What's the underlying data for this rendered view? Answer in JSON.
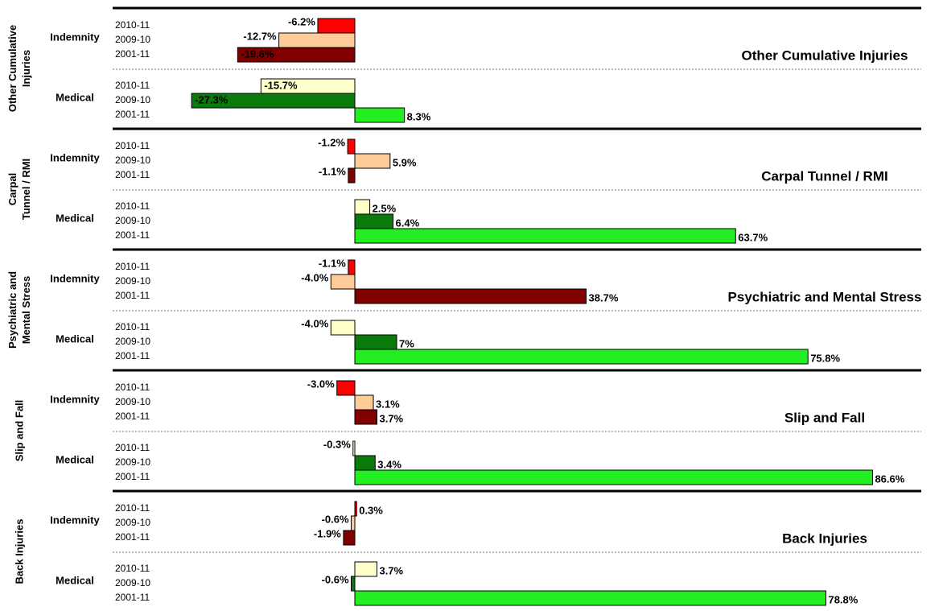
{
  "chart_data": {
    "type": "bar",
    "groups": [
      {
        "label_lines": [
          "Other Cumulative",
          "Injuries"
        ],
        "title": "Other Cumulative Injuries",
        "subgroups": [
          {
            "name": "Indemnity",
            "categories": [
              "2010-11",
              "2009-10",
              "2001-11"
            ],
            "values": [
              -6.2,
              -12.7,
              -19.6
            ],
            "value_labels": [
              "-6.2%",
              "-12.7%",
              "-19.6%"
            ],
            "colors": [
              "#ff0000",
              "#ffcc99",
              "#800000"
            ]
          },
          {
            "name": "Medical",
            "categories": [
              "2010-11",
              "2009-10",
              "2001-11"
            ],
            "values": [
              -15.7,
              -27.3,
              8.3
            ],
            "value_labels": [
              "-15.7%",
              "-27.3%",
              "8.3%"
            ],
            "colors": [
              "#ffffcc",
              "#0a7a0a",
              "#22ee22"
            ]
          }
        ]
      },
      {
        "label_lines": [
          "Carpal",
          "Tunnel / RMI"
        ],
        "title": "Carpal Tunnel / RMI",
        "subgroups": [
          {
            "name": "Indemnity",
            "categories": [
              "2010-11",
              "2009-10",
              "2001-11"
            ],
            "values": [
              -1.2,
              5.9,
              -1.1
            ],
            "value_labels": [
              "-1.2%",
              "5.9%",
              "-1.1%"
            ],
            "colors": [
              "#ff0000",
              "#ffcc99",
              "#800000"
            ]
          },
          {
            "name": "Medical",
            "categories": [
              "2010-11",
              "2009-10",
              "2001-11"
            ],
            "values": [
              2.5,
              6.4,
              63.7
            ],
            "value_labels": [
              "2.5%",
              "6.4%",
              "63.7%"
            ],
            "colors": [
              "#ffffcc",
              "#0a7a0a",
              "#22ee22"
            ]
          }
        ]
      },
      {
        "label_lines": [
          "Psychiatric and",
          "Mental Stress"
        ],
        "title": "Psychiatric and Mental Stress",
        "subgroups": [
          {
            "name": "Indemnity",
            "categories": [
              "2010-11",
              "2009-10",
              "2001-11"
            ],
            "values": [
              -1.1,
              -4.0,
              38.7
            ],
            "value_labels": [
              "-1.1%",
              "-4.0%",
              "38.7%"
            ],
            "colors": [
              "#ff0000",
              "#ffcc99",
              "#800000"
            ]
          },
          {
            "name": "Medical",
            "categories": [
              "2010-11",
              "2009-10",
              "2001-11"
            ],
            "values": [
              -4.0,
              7,
              75.8
            ],
            "value_labels": [
              "-4.0%",
              "7%",
              "75.8%"
            ],
            "colors": [
              "#ffffcc",
              "#0a7a0a",
              "#22ee22"
            ]
          }
        ]
      },
      {
        "label_lines": [
          "Slip and Fall"
        ],
        "title": "Slip and Fall",
        "subgroups": [
          {
            "name": "Indemnity",
            "categories": [
              "2010-11",
              "2009-10",
              "2001-11"
            ],
            "values": [
              -3.0,
              3.1,
              3.7
            ],
            "value_labels": [
              "-3.0%",
              "3.1%",
              "3.7%"
            ],
            "colors": [
              "#ff0000",
              "#ffcc99",
              "#800000"
            ]
          },
          {
            "name": "Medical",
            "categories": [
              "2010-11",
              "2009-10",
              "2001-11"
            ],
            "values": [
              -0.3,
              3.4,
              86.6
            ],
            "value_labels": [
              "-0.3%",
              "3.4%",
              "86.6%"
            ],
            "colors": [
              "#ffffcc",
              "#0a7a0a",
              "#22ee22"
            ]
          }
        ]
      },
      {
        "label_lines": [
          "Back Injuries"
        ],
        "title": "Back Injuries",
        "subgroups": [
          {
            "name": "Indemnity",
            "categories": [
              "2010-11",
              "2009-10",
              "2001-11"
            ],
            "values": [
              0.3,
              -0.6,
              -1.9
            ],
            "value_labels": [
              "0.3%",
              "-0.6%",
              "-1.9%"
            ],
            "colors": [
              "#ff0000",
              "#ffcc99",
              "#800000"
            ]
          },
          {
            "name": "Medical",
            "categories": [
              "2010-11",
              "2009-10",
              "2001-11"
            ],
            "values": [
              3.7,
              -0.6,
              78.8
            ],
            "value_labels": [
              "3.7%",
              "-0.6%",
              "78.8%"
            ],
            "colors": [
              "#ffffcc",
              "#0a7a0a",
              "#22ee22"
            ]
          }
        ]
      }
    ]
  }
}
